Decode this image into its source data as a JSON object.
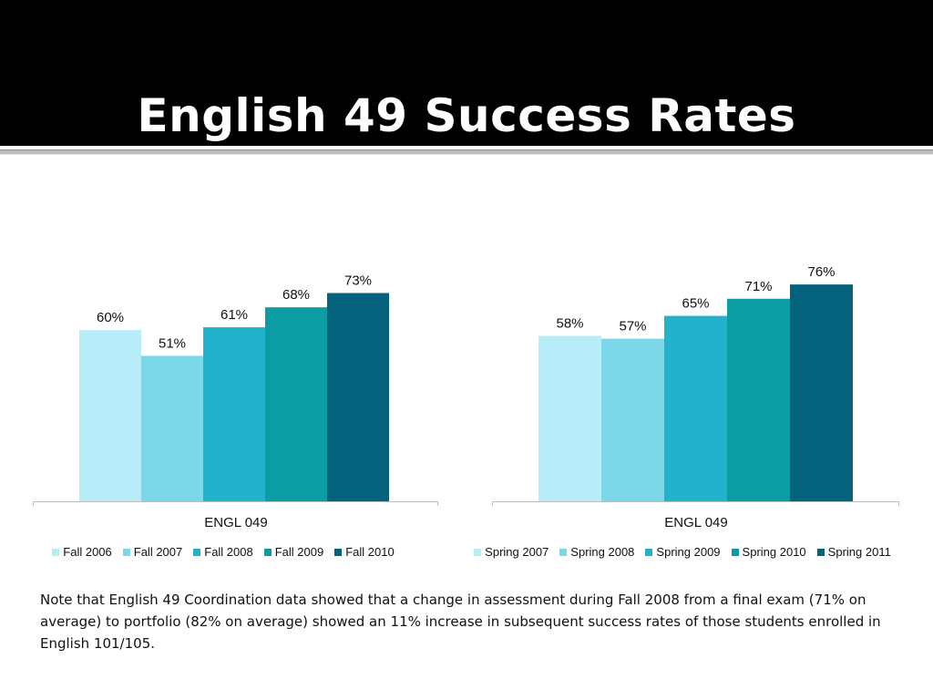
{
  "slide": {
    "title": "English 49 Success Rates",
    "note": "Note that English 49 Coordination data showed that a change in assessment during Fall 2008 from a final exam (71% on average) to portfolio (82% on average) showed an 11% increase in subsequent success rates of those students enrolled in English 101/105."
  },
  "colors": {
    "series": [
      "#b8ecf8",
      "#7cd8e8",
      "#22b2cc",
      "#0c9ca4",
      "#04627c"
    ],
    "axis": "#bfbfbf",
    "title_band": "#000000"
  },
  "chart_data": [
    {
      "type": "bar",
      "categories": [
        "ENGL 049"
      ],
      "series": [
        {
          "name": "Fall 2006",
          "values": [
            60
          ],
          "label": "60%"
        },
        {
          "name": "Fall 2007",
          "values": [
            51
          ],
          "label": "51%"
        },
        {
          "name": "Fall 2008",
          "values": [
            61
          ],
          "label": "61%"
        },
        {
          "name": "Fall 2009",
          "values": [
            68
          ],
          "label": "68%"
        },
        {
          "name": "Fall 2010",
          "values": [
            73
          ],
          "label": "73%"
        }
      ],
      "ylim": [
        0,
        100
      ],
      "grid": false,
      "legend": "bottom",
      "data_labels": true
    },
    {
      "type": "bar",
      "categories": [
        "ENGL 049"
      ],
      "series": [
        {
          "name": "Spring 2007",
          "values": [
            58
          ],
          "label": "58%"
        },
        {
          "name": "Spring 2008",
          "values": [
            57
          ],
          "label": "57%"
        },
        {
          "name": "Spring 2009",
          "values": [
            65
          ],
          "label": "65%"
        },
        {
          "name": "Spring 2010",
          "values": [
            71
          ],
          "label": "71%"
        },
        {
          "name": "Spring 2011",
          "values": [
            76
          ],
          "label": "76%"
        }
      ],
      "ylim": [
        0,
        100
      ],
      "grid": false,
      "legend": "bottom",
      "data_labels": true
    }
  ]
}
